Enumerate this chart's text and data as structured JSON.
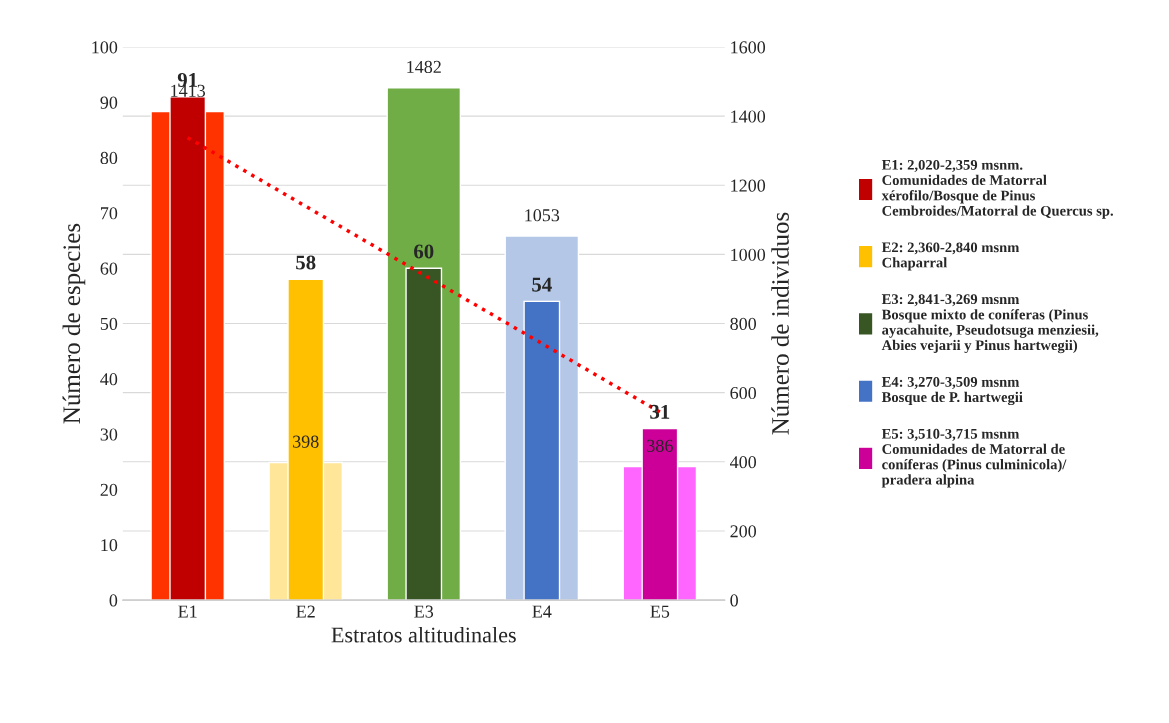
{
  "chart_data": {
    "type": "bar",
    "xlabel": "Estratos altitudinales",
    "ylabel": "Número de especies",
    "y2label": "Número de individuos",
    "categories": [
      "E1",
      "E2",
      "E3",
      "E4",
      "E5"
    ],
    "series": [
      {
        "axis": "y2",
        "colors": [
          "#ff3300",
          "#ffe699",
          "#70ad47",
          "#b4c7e7",
          "#ff66ff"
        ],
        "values": [
          1413,
          398,
          1482,
          1053,
          386
        ],
        "value_labels": [
          "1413",
          "398",
          "1482",
          "1053",
          "386"
        ]
      },
      {
        "axis": "y",
        "name": "E1: 2,020-2,359 msnm.\nComunidades de Matorral\nxérofilo/Bosque de Pinus\nCembroides/Matorral de Quercus sp.",
        "color": "#c00000",
        "values": [
          91,
          null,
          null,
          null,
          null
        ],
        "value_labels": [
          "91",
          null,
          null,
          null,
          null
        ]
      },
      {
        "axis": "y",
        "name": "E2: 2,360-2,840 msnm\nChaparral",
        "color": "#ffc000",
        "values": [
          null,
          58,
          null,
          null,
          null
        ],
        "value_labels": [
          null,
          "58",
          null,
          null,
          null
        ]
      },
      {
        "axis": "y",
        "name": "E3: 2,841-3,269 msnm\nBosque mixto de coníferas (Pinus\nayacahuite, Pseudotsuga menziesii,\nAbies vejarii y Pinus hartwegii)",
        "color": "#375623",
        "values": [
          null,
          null,
          60,
          null,
          null
        ],
        "value_labels": [
          null,
          null,
          "60",
          null,
          null
        ]
      },
      {
        "axis": "y",
        "name": "E4: 3,270-3,509 msnm\nBosque de P. hartwegii",
        "color": "#4472c4",
        "values": [
          null,
          null,
          null,
          54,
          null
        ],
        "value_labels": [
          null,
          null,
          null,
          "54",
          null
        ]
      },
      {
        "axis": "y",
        "name": "E5: 3,510-3,715 msnm\nComunidades de Matorral de\nconíferas (Pinus culminicola)/\npradera alpina",
        "color": "#cc0099",
        "values": [
          null,
          null,
          null,
          null,
          31
        ],
        "value_labels": [
          null,
          null,
          null,
          null,
          "31"
        ]
      },
      {
        "type": "line",
        "axis": "y",
        "color": "#ff0000",
        "line_style": "dotted",
        "values": [
          83.6,
          71.2,
          58.8,
          46.4,
          34.0
        ]
      }
    ],
    "ylim": [
      0,
      100
    ],
    "yticks": [
      0,
      10,
      20,
      30,
      40,
      50,
      60,
      70,
      80,
      90,
      100
    ],
    "y2lim": [
      0,
      1600
    ],
    "y2ticks": [
      0,
      200,
      400,
      600,
      800,
      1000,
      1200,
      1400,
      1600
    ],
    "grid": "y",
    "legend": "right"
  }
}
